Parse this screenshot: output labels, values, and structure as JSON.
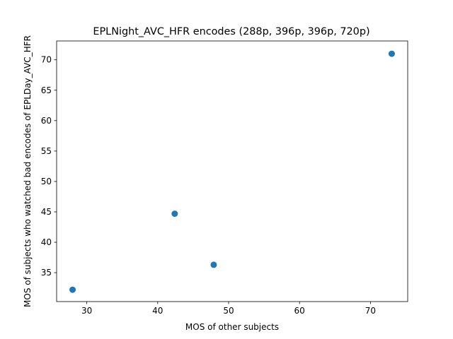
{
  "chart_data": {
    "type": "scatter",
    "title": "EPLNight_AVC_HFR encodes (288p, 396p, 396p, 720p)",
    "xlabel": "MOS of other subjects",
    "ylabel": "MOS of subjects who watched bad encodes of EPLDay_AVC_HFR",
    "xlim": [
      25.75,
      75.25
    ],
    "ylim": [
      30.25,
      73.1
    ],
    "xticks": [
      30,
      40,
      50,
      60,
      70
    ],
    "yticks": [
      35,
      40,
      45,
      50,
      55,
      60,
      65,
      70
    ],
    "grid": false,
    "series": [
      {
        "color": "#1f77b4",
        "points": [
          {
            "x": 28.0,
            "y": 32.2
          },
          {
            "x": 42.4,
            "y": 44.7
          },
          {
            "x": 47.9,
            "y": 36.3
          },
          {
            "x": 73.0,
            "y": 71.0
          }
        ]
      }
    ]
  }
}
